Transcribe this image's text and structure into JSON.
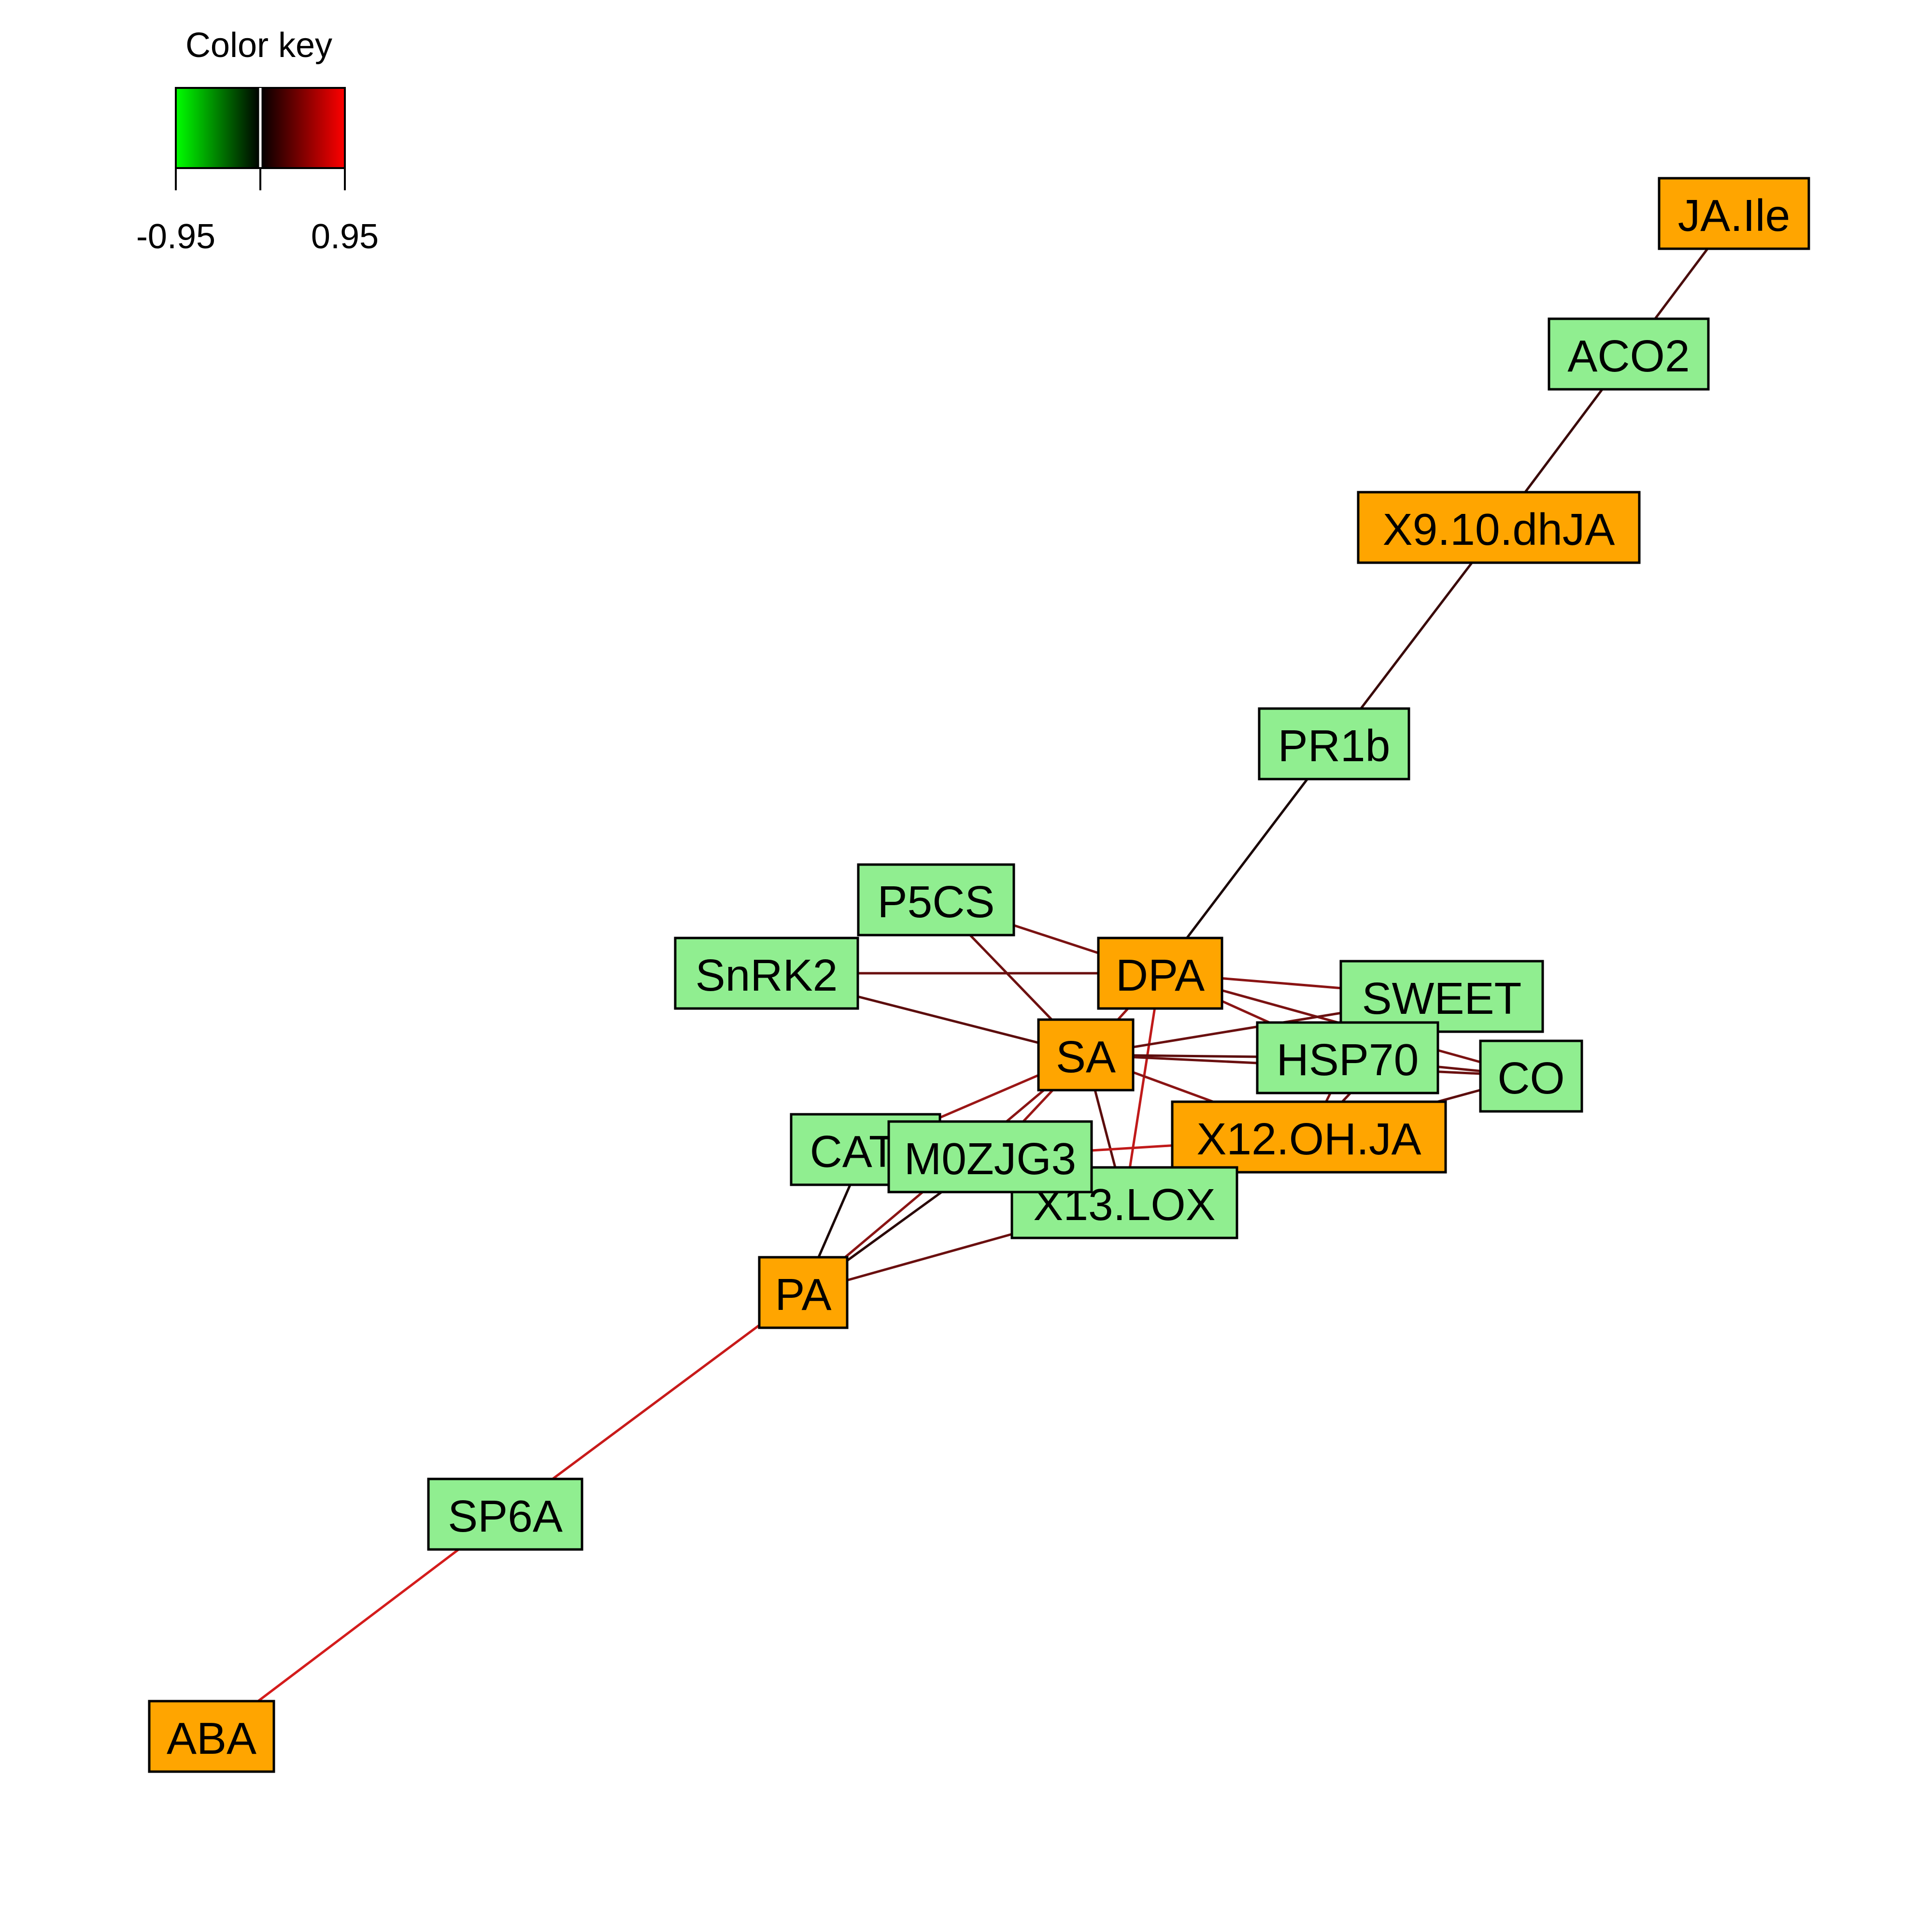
{
  "color_key": {
    "title": "Color key",
    "min_label": "-0.95",
    "max_label": "0.95",
    "min_color": "#00ff00",
    "mid_color": "#000000",
    "max_color": "#ff0000"
  },
  "node_colors": {
    "metabolite": "#ffa500",
    "gene": "#90ee90"
  },
  "nodes": [
    {
      "id": "JA.Ile",
      "type": "metabolite"
    },
    {
      "id": "ACO2",
      "type": "gene"
    },
    {
      "id": "X9.10.dhJA",
      "type": "metabolite"
    },
    {
      "id": "PR1b",
      "type": "gene"
    },
    {
      "id": "P5CS",
      "type": "gene"
    },
    {
      "id": "SnRK2",
      "type": "gene"
    },
    {
      "id": "DPA",
      "type": "metabolite"
    },
    {
      "id": "SWEET",
      "type": "gene"
    },
    {
      "id": "HSP70",
      "type": "gene"
    },
    {
      "id": "CO",
      "type": "gene"
    },
    {
      "id": "SA",
      "type": "metabolite"
    },
    {
      "id": "X12.OH.JA",
      "type": "metabolite"
    },
    {
      "id": "CAT1",
      "type": "gene"
    },
    {
      "id": "X13.LOX",
      "type": "gene"
    },
    {
      "id": "M0ZJG3",
      "type": "gene"
    },
    {
      "id": "PA",
      "type": "metabolite"
    },
    {
      "id": "SP6A",
      "type": "gene"
    },
    {
      "id": "ABA",
      "type": "metabolite"
    }
  ],
  "edges": [
    {
      "source": "JA.Ile",
      "target": "ACO2",
      "color": "#4a0d0d"
    },
    {
      "source": "ACO2",
      "target": "X9.10.dhJA",
      "color": "#3a0a0a"
    },
    {
      "source": "X9.10.dhJA",
      "target": "PR1b",
      "color": "#3a0a0a"
    },
    {
      "source": "PR1b",
      "target": "DPA",
      "color": "#1a0606"
    },
    {
      "source": "P5CS",
      "target": "DPA",
      "color": "#7a1212"
    },
    {
      "source": "P5CS",
      "target": "SA",
      "color": "#6e1010"
    },
    {
      "source": "SnRK2",
      "target": "DPA",
      "color": "#6a0f0f"
    },
    {
      "source": "SnRK2",
      "target": "SA",
      "color": "#5c0d0d"
    },
    {
      "source": "DPA",
      "target": "SWEET",
      "color": "#8a1414"
    },
    {
      "source": "DPA",
      "target": "HSP70",
      "color": "#8a1414"
    },
    {
      "source": "DPA",
      "target": "CO",
      "color": "#7a1212"
    },
    {
      "source": "DPA",
      "target": "SA",
      "color": "#9a1616"
    },
    {
      "source": "DPA",
      "target": "X13.LOX",
      "color": "#c01a1a"
    },
    {
      "source": "SA",
      "target": "SWEET",
      "color": "#6a1010"
    },
    {
      "source": "SA",
      "target": "HSP70",
      "color": "#5c0d0d"
    },
    {
      "source": "SA",
      "target": "CO",
      "color": "#6a1010"
    },
    {
      "source": "SA",
      "target": "CAT1",
      "color": "#9a1616"
    },
    {
      "source": "SA",
      "target": "M0ZJG3",
      "color": "#9a1616"
    },
    {
      "source": "SA",
      "target": "X13.LOX",
      "color": "#5c0d0d"
    },
    {
      "source": "SA",
      "target": "PA",
      "color": "#8a1414"
    },
    {
      "source": "SA",
      "target": "X12.OH.JA",
      "color": "#8a1414"
    },
    {
      "source": "HSP70",
      "target": "X12.OH.JA",
      "color": "#7a1212"
    },
    {
      "source": "SWEET",
      "target": "X12.OH.JA",
      "color": "#6a1010"
    },
    {
      "source": "CO",
      "target": "X12.OH.JA",
      "color": "#5c0d0d"
    },
    {
      "source": "HSP70",
      "target": "CO",
      "color": "#6a1010"
    },
    {
      "source": "X12.OH.JA",
      "target": "M0ZJG3",
      "color": "#c01a1a"
    },
    {
      "source": "X12.OH.JA",
      "target": "X13.LOX",
      "color": "#8a1414"
    },
    {
      "source": "CAT1",
      "target": "PA",
      "color": "#1a0606"
    },
    {
      "source": "M0ZJG3",
      "target": "PA",
      "color": "#2a0808"
    },
    {
      "source": "X13.LOX",
      "target": "PA",
      "color": "#6a0f0f"
    },
    {
      "source": "PA",
      "target": "SP6A",
      "color": "#c81a1a"
    },
    {
      "source": "SP6A",
      "target": "ABA",
      "color": "#d41c1c"
    }
  ]
}
